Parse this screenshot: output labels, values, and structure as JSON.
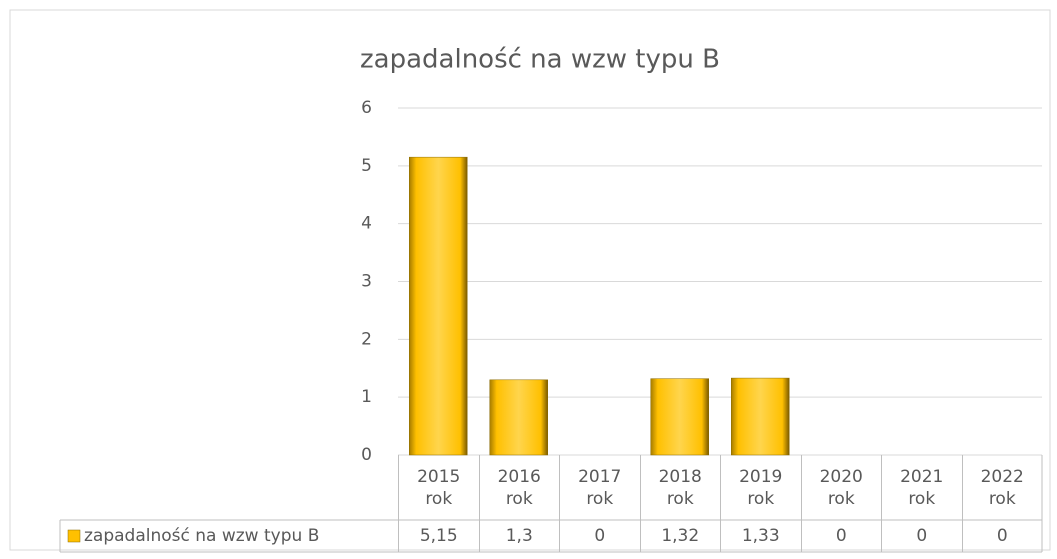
{
  "chart_data": {
    "type": "bar",
    "title": "zapadalność na wzw typu B",
    "categories": [
      "2015 rok",
      "2016 rok",
      "2017 rok",
      "2018 rok",
      "2019 rok",
      "2020 rok",
      "2021 rok",
      "2022 rok"
    ],
    "series": [
      {
        "name": "zapadalność na wzw typu B",
        "color": "#ffc000",
        "values": [
          5.15,
          1.3,
          0,
          1.32,
          1.33,
          0,
          0,
          0
        ],
        "value_labels": [
          "5,15",
          "1,3",
          "0",
          "1,32",
          "1,33",
          "0",
          "0",
          "0"
        ]
      }
    ],
    "ylim": [
      0,
      6
    ],
    "yticks": [
      0,
      1,
      2,
      3,
      4,
      5,
      6
    ],
    "grid": true,
    "legend": "bottom"
  }
}
